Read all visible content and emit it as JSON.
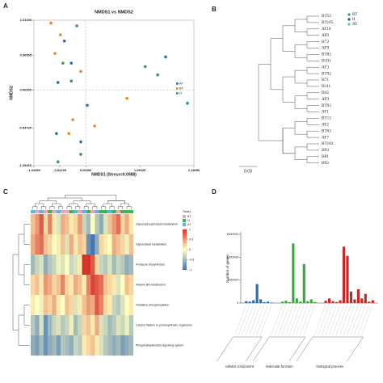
{
  "chart_data": [
    {
      "panel": "A",
      "type": "scatter",
      "title": "NMDS1 vs NMDS2",
      "x_label": "NMDS1 (Stress=0.0988)",
      "y_label": "NMDS2",
      "xlim": [
        -1.0439,
        2.1805
      ],
      "ylim": [
        -1.0946,
        1.0119
      ],
      "xticks": [
        {
          "value": -1.0439,
          "label": "-1.04390"
        },
        {
          "value": -0.52195,
          "label": "-0.52195"
        },
        {
          "value": 0,
          "label": "0.00000"
        },
        {
          "value": 1.09025,
          "label": "1.09025"
        },
        {
          "value": 2.1805,
          "label": "2.18050"
        }
      ],
      "yticks": [
        {
          "value": 1.0119,
          "label": "1.01190"
        },
        {
          "value": 0.50595,
          "label": "0.50595"
        },
        {
          "value": 0,
          "label": "0.00000"
        },
        {
          "value": -0.5473,
          "label": "-0.54730"
        },
        {
          "value": -1.0946,
          "label": "-1.09460"
        }
      ],
      "legend": "right",
      "series": [
        {
          "name": "AT",
          "color": "#2b6cb0",
          "x": [
            -0.43,
            -0.29,
            1.61,
            -0.56,
            0.03,
            -0.59,
            -0.1
          ],
          "values": [
            0.71,
            0.39,
            0.48,
            0.11,
            -0.22,
            -0.63,
            -0.75
          ]
        },
        {
          "name": "BT",
          "color": "#e8892b",
          "x": [
            -0.7,
            -0.51,
            -0.62,
            -0.1,
            0.83,
            -0.26,
            0.18,
            -0.34
          ],
          "values": [
            0.97,
            0.8,
            0.53,
            0.27,
            -0.12,
            -0.43,
            -0.52,
            -0.63
          ]
        },
        {
          "name": "H",
          "color": "#2e9e4a",
          "x": [
            -0.18,
            -0.46,
            1.2,
            -0.29,
            2.05,
            -0.1,
            -0.56,
            1.45
          ],
          "values": [
            0.93,
            0.39,
            0.34,
            0.13,
            -0.19,
            -0.93,
            -1.04,
            0.22
          ]
        }
      ]
    },
    {
      "panel": "B",
      "type": "dendrogram",
      "scale_label": "0.03",
      "legend": [
        {
          "name": "BT",
          "color": "#2a9d8f"
        },
        {
          "name": "H",
          "color": "#3b4a7a"
        },
        {
          "name": "AT",
          "color": "#4cc9c0"
        }
      ],
      "leaves": [
        "BT53",
        "BT105",
        "AT10",
        "AT9",
        "H72",
        "AT8",
        "BT82",
        "H101",
        "AT3",
        "BT92",
        "H71",
        "H111",
        "H42",
        "AT9",
        "BT93",
        "AT1",
        "BT13",
        "AT2",
        "BT63",
        "AT7",
        "BT103",
        "H93",
        "H81",
        "H92"
      ]
    },
    {
      "panel": "C",
      "type": "heatmap",
      "legend_title": "Treat1",
      "legend": [
        {
          "name": "BT",
          "color": "#f4a3b5"
        },
        {
          "name": "H",
          "color": "#3cb44b"
        },
        {
          "name": "AT",
          "color": "#5ab4e5"
        }
      ],
      "annotation_colors": [
        "#5ab4e5",
        "#f4a3b5",
        "#5ab4e5",
        "#f4a3b5",
        "#3cb44b",
        "#f4a3b5",
        "#5ab4e5",
        "#f4a3b5",
        "#f4a3b5",
        "#3cb44b",
        "#5ab4e5",
        "#f4a3b5",
        "#5ab4e5",
        "#3cb44b",
        "#f4a3b5",
        "#5ab4e5",
        "#3cb44b",
        "#3cb44b",
        "#5ab4e5",
        "#3cb44b",
        "#f4a3b5",
        "#3cb44b",
        "#3cb44b",
        "#3cb44b"
      ],
      "rows": [
        "Glycerophospholipid metabolism",
        "Glycerolipid metabolism",
        "N-Glycan biosynthesis",
        "Vitamin B6 metabolism",
        "Oxidative phosphorylation",
        "Carbon fixation in photosynthetic organisms",
        "Phosphatidylinositol signaling system"
      ],
      "zlim": [
        -1,
        1
      ],
      "zticks": [
        -1,
        -0.5,
        0,
        0.5,
        1
      ],
      "values": [
        [
          0.3,
          0.5,
          0.8,
          0.2,
          0.6,
          0.1,
          -0.2,
          0.4,
          0.3,
          0.1,
          0.2,
          0.5,
          -0.3,
          -0.5,
          0.0,
          -0.4,
          -0.6,
          -0.2,
          0.3,
          0.5,
          0.7,
          0.2,
          0.4,
          0.1
        ],
        [
          0.4,
          0.6,
          0.7,
          0.3,
          0.2,
          0.0,
          0.1,
          0.3,
          -0.2,
          0.4,
          0.1,
          0.3,
          0.2,
          -0.8,
          -1.0,
          -0.6,
          0.2,
          0.1,
          0.0,
          0.4,
          0.3,
          0.2,
          -0.1,
          0.3
        ],
        [
          -0.5,
          -0.3,
          -0.2,
          -0.6,
          -0.4,
          -0.3,
          -0.1,
          -0.2,
          0.0,
          -0.3,
          -0.2,
          0.1,
          1.0,
          1.0,
          0.8,
          0.2,
          -0.3,
          -0.4,
          -0.2,
          -0.5,
          -0.3,
          -0.4,
          -0.6,
          -0.5
        ],
        [
          0.2,
          0.3,
          0.1,
          0.5,
          0.4,
          0.2,
          0.3,
          0.6,
          0.2,
          0.1,
          0.4,
          0.3,
          0.1,
          0.6,
          0.9,
          0.8,
          0.7,
          0.3,
          0.2,
          0.1,
          -0.2,
          0.0,
          0.3,
          0.2
        ],
        [
          0.1,
          0.0,
          -0.1,
          0.3,
          0.2,
          0.4,
          0.1,
          0.0,
          0.3,
          0.2,
          -0.2,
          0.1,
          0.3,
          0.5,
          0.4,
          0.8,
          0.6,
          0.2,
          0.1,
          -0.3,
          -0.4,
          -0.2,
          0.0,
          0.1
        ],
        [
          -0.4,
          -0.6,
          -0.2,
          -0.8,
          -0.5,
          -0.3,
          -0.2,
          -0.4,
          -0.3,
          -0.1,
          -0.5,
          -0.3,
          0.2,
          0.3,
          0.1,
          0.4,
          -0.2,
          -0.3,
          -0.5,
          -0.4,
          -0.2,
          -0.3,
          -0.1,
          -0.4
        ],
        [
          -0.6,
          -0.7,
          -0.5,
          -0.8,
          -0.6,
          -0.5,
          -0.7,
          -0.4,
          -0.5,
          -0.6,
          -0.3,
          -0.4,
          0.1,
          0.2,
          0.3,
          0.1,
          -0.2,
          -0.4,
          -0.5,
          -0.6,
          -0.5,
          -0.7,
          -0.6,
          -0.5
        ]
      ]
    },
    {
      "panel": "D",
      "type": "grouped_bar",
      "y_label": "Number of genes",
      "ylim": [
        0,
        1500000
      ],
      "yticks": [
        0,
        500000,
        1000000,
        1500000
      ],
      "groups": [
        {
          "name": "cellular component",
          "color": "#2b6cb0",
          "values": [
            40000,
            30000,
            60000,
            415000,
            80000,
            20000,
            30000,
            10000
          ]
        },
        {
          "name": "molecular function",
          "color": "#3aa53a",
          "values": [
            30000,
            50000,
            20000,
            1300000,
            100000,
            30000,
            850000,
            40000,
            80000,
            20000
          ]
        },
        {
          "name": "biological process",
          "color": "#c62828",
          "values": [
            50000,
            100000,
            40000,
            20000,
            60000,
            1230000,
            1030000,
            250000,
            80000,
            300000,
            100000,
            200000,
            30000,
            60000
          ]
        }
      ]
    }
  ]
}
